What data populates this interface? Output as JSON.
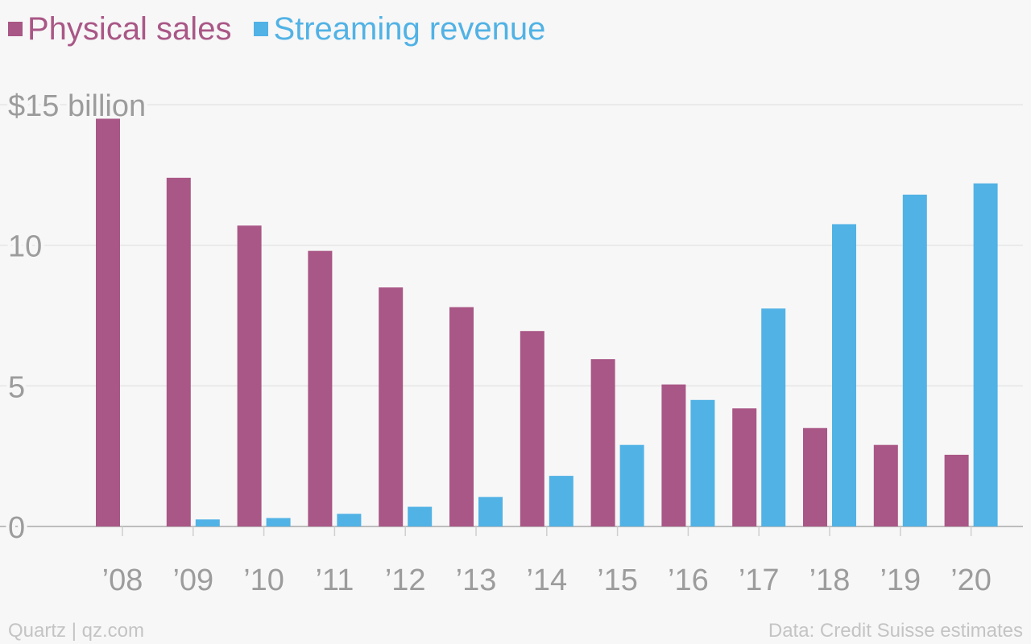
{
  "legend": {
    "items": [
      {
        "label": "Physical sales",
        "color": "#a95786"
      },
      {
        "label": "Streaming revenue",
        "color": "#51b2e5"
      }
    ]
  },
  "footer": {
    "source_left": "Quartz | qz.com",
    "source_right": "Data: Credit Suisse estimates"
  },
  "chart_data": {
    "type": "bar",
    "categories": [
      "’08",
      "’09",
      "’10",
      "’11",
      "’12",
      "’13",
      "’14",
      "’15",
      "’16",
      "’17",
      "’18",
      "’19",
      "’20"
    ],
    "series": [
      {
        "name": "Physical sales",
        "color": "#a95786",
        "values": [
          14.5,
          12.4,
          10.7,
          9.8,
          8.5,
          7.8,
          6.95,
          5.95,
          5.05,
          4.2,
          3.5,
          2.9,
          2.55
        ]
      },
      {
        "name": "Streaming revenue",
        "color": "#51b2e5",
        "values": [
          0,
          0.25,
          0.3,
          0.45,
          0.7,
          1.05,
          1.8,
          2.9,
          4.5,
          7.75,
          10.75,
          11.8,
          12.2
        ]
      }
    ],
    "ylim": [
      0,
      15
    ],
    "y_ticks": [
      {
        "value": 15,
        "label": "$15 billion"
      },
      {
        "value": 10,
        "label": "10"
      },
      {
        "value": 5,
        "label": "5"
      },
      {
        "value": 0,
        "label": "0"
      }
    ],
    "grid": true,
    "legend_position": "top-left"
  }
}
